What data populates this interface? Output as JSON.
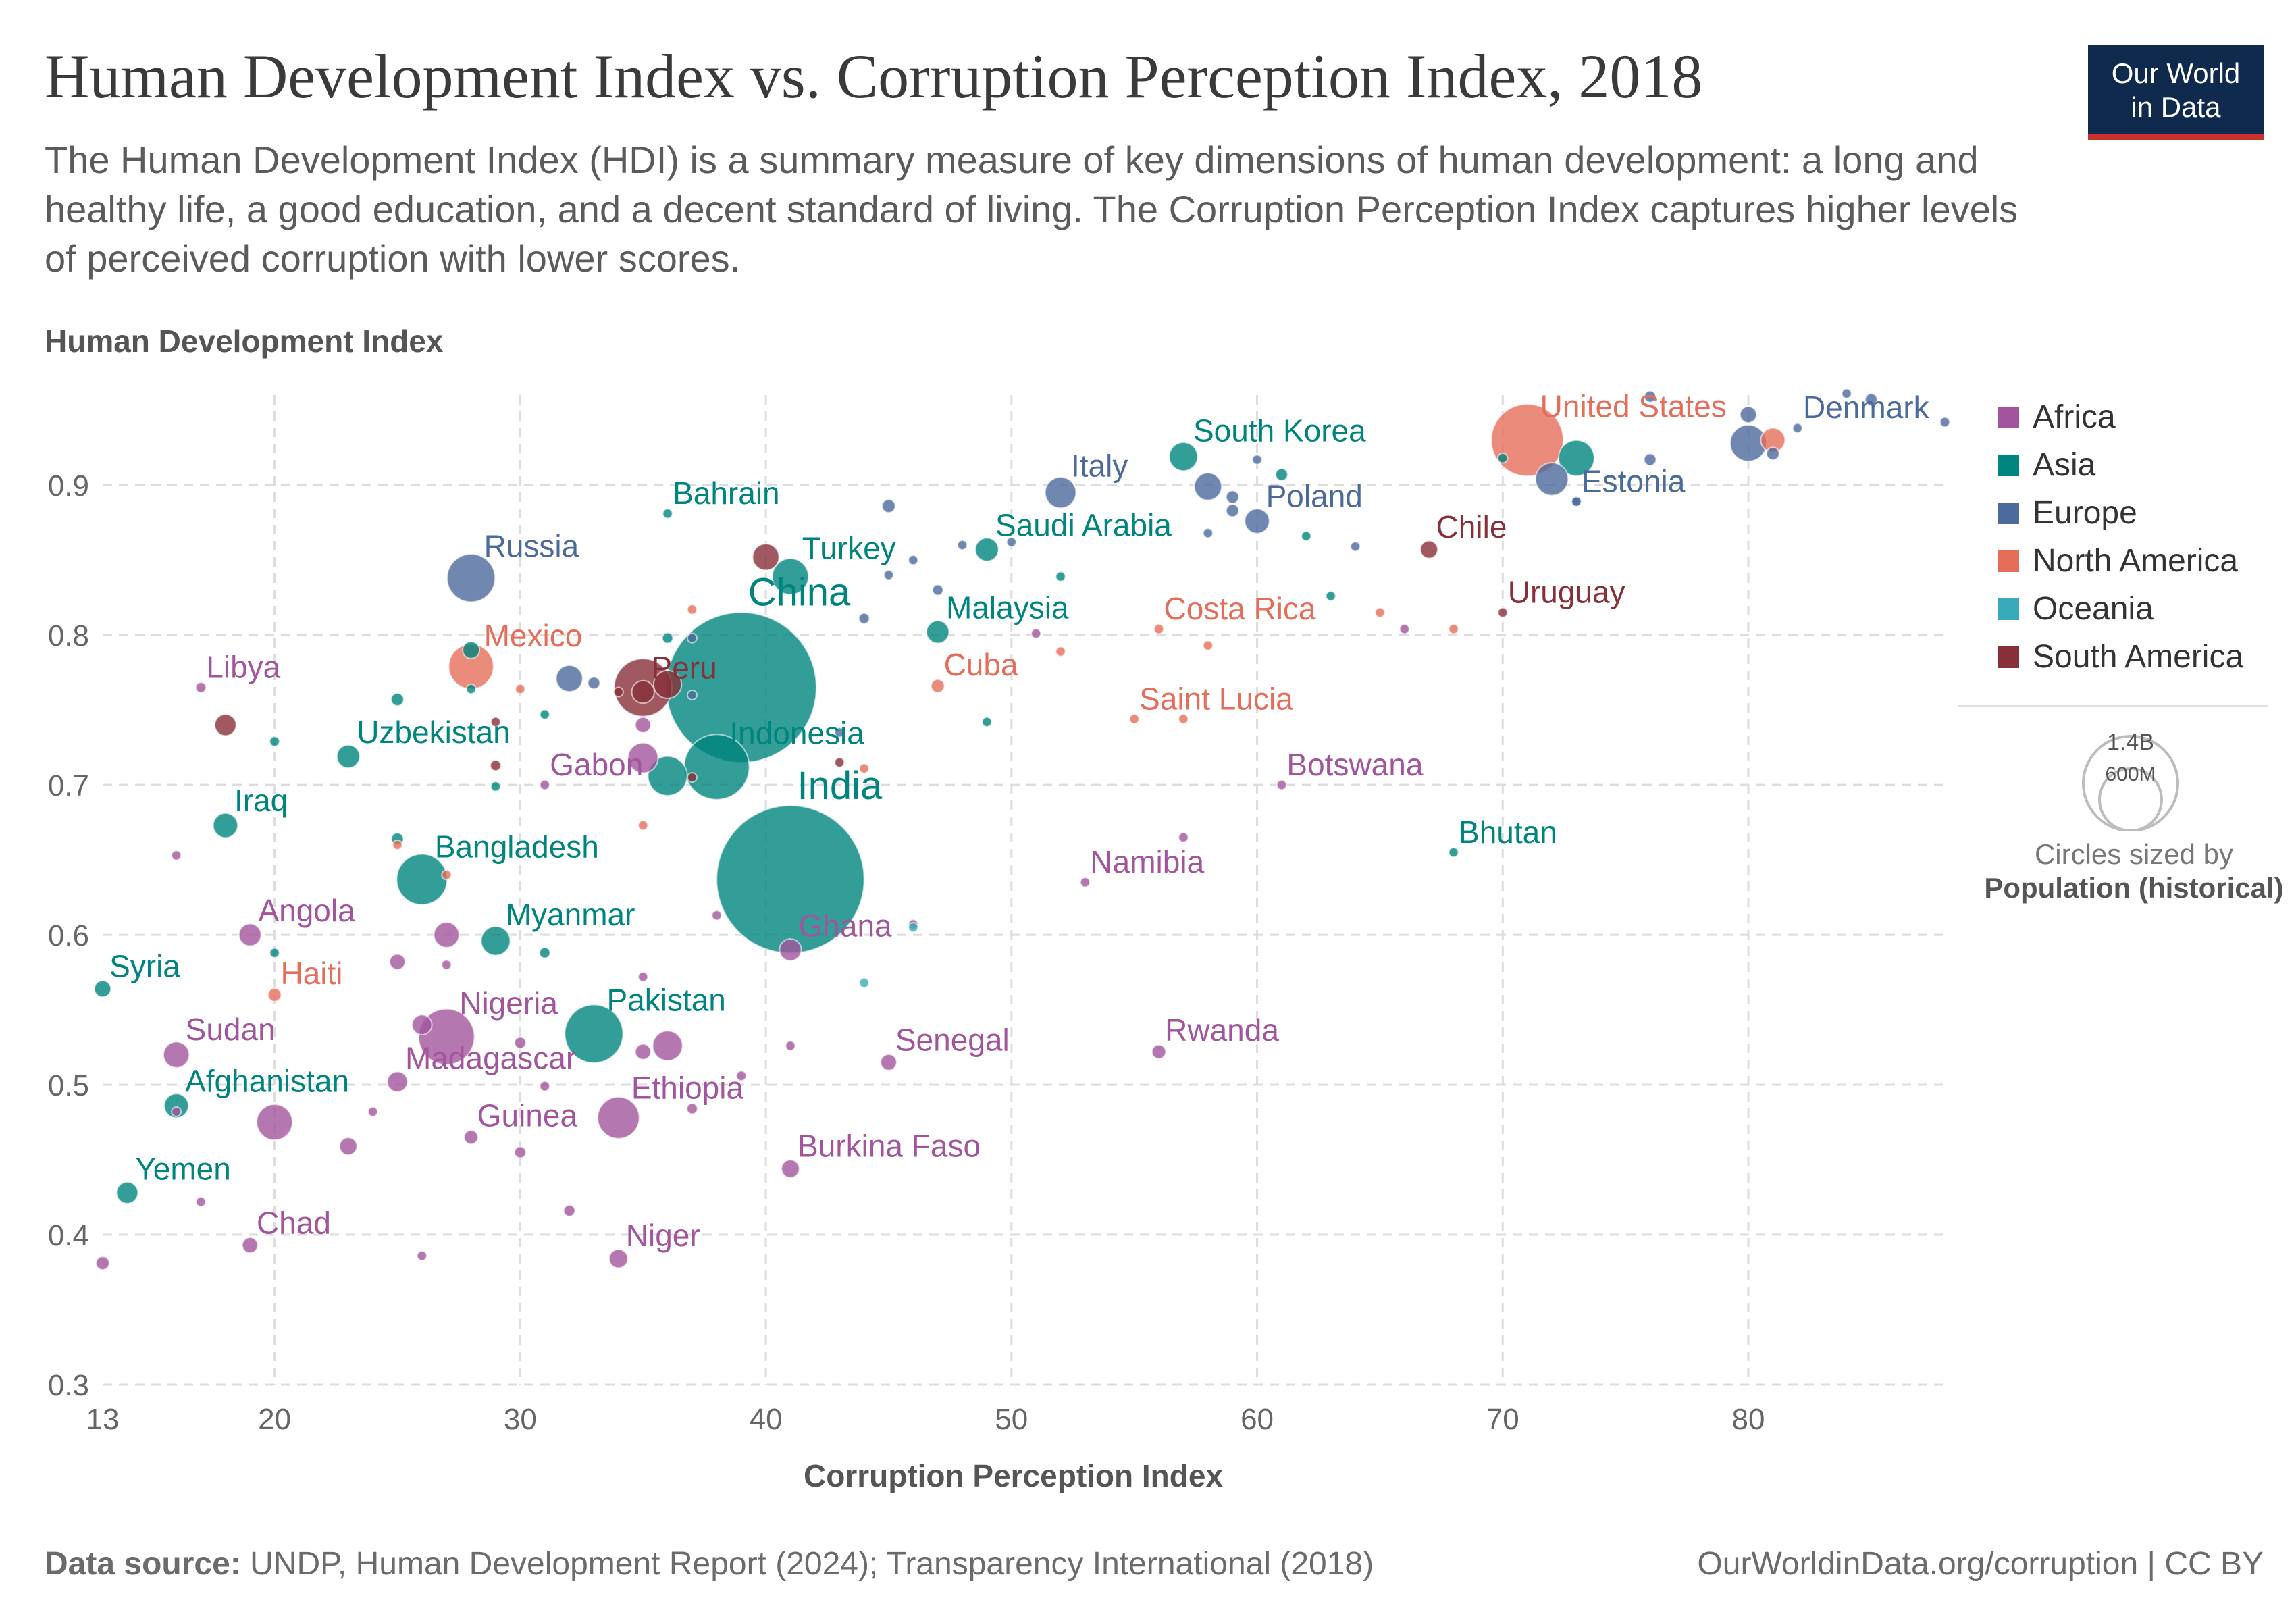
{
  "header": {
    "title": "Human Development Index vs. Corruption Perception Index, 2018",
    "subtitle": "The Human Development Index (HDI) is a summary measure of key dimensions of human development: a long and healthy life, a good education, and a decent standard of living. The Corruption Perception Index captures higher levels of perceived corruption with lower scores.",
    "logo_line1": "Our World",
    "logo_line2": "in Data"
  },
  "footer": {
    "source_label": "Data source:",
    "source_text": "UNDP, Human Development Report (2024); Transparency International (2018)",
    "right": "OurWorldinData.org/corruption | CC BY"
  },
  "legend": {
    "size_note": "Circles sized by",
    "size_var": "Population (historical)",
    "size_big": "1.4B",
    "size_small": "600M"
  },
  "colors": {
    "Africa": "#a2559c",
    "Asia": "#00847e",
    "Europe": "#4c6a9c",
    "North America": "#e56e5a",
    "Oceania": "#38aaba",
    "South America": "#883039"
  },
  "chart_data": {
    "type": "scatter",
    "title": "Human Development Index vs. Corruption Perception Index, 2018",
    "xlabel": "Corruption Perception Index",
    "ylabel": "Human Development Index",
    "xlim": [
      13,
      88
    ],
    "ylim": [
      0.3,
      0.96
    ],
    "xticks": [
      13,
      20,
      30,
      40,
      50,
      60,
      70,
      80
    ],
    "yticks": [
      0.3,
      0.4,
      0.5,
      0.6,
      0.7,
      0.8,
      0.9
    ],
    "grid": true,
    "legend_position": "right",
    "series": [
      {
        "name": "Africa",
        "points": [
          {
            "label": "Libya",
            "x": 17,
            "y": 0.765,
            "pop": 6.7
          },
          {
            "label": "Gabon",
            "x": 31,
            "y": 0.7,
            "pop": 2.1
          },
          {
            "label": "Botswana",
            "x": 61,
            "y": 0.7,
            "pop": 2.3
          },
          {
            "label": "Namibia",
            "x": 53,
            "y": 0.635,
            "pop": 2.5
          },
          {
            "label": "Angola",
            "x": 19,
            "y": 0.6,
            "pop": 31
          },
          {
            "label": "Ghana",
            "x": 41,
            "y": 0.59,
            "pop": 30
          },
          {
            "label": "Nigeria",
            "x": 27,
            "y": 0.532,
            "pop": 196
          },
          {
            "label": "Sudan",
            "x": 16,
            "y": 0.52,
            "pop": 42
          },
          {
            "label": "Senegal",
            "x": 45,
            "y": 0.515,
            "pop": 16
          },
          {
            "label": "Rwanda",
            "x": 56,
            "y": 0.522,
            "pop": 12
          },
          {
            "label": "Madagascar",
            "x": 25,
            "y": 0.502,
            "pop": 26
          },
          {
            "label": "Ethiopia",
            "x": 34,
            "y": 0.478,
            "pop": 109
          },
          {
            "label": "Guinea",
            "x": 28,
            "y": 0.465,
            "pop": 12
          },
          {
            "label": "Burkina Faso",
            "x": 41,
            "y": 0.444,
            "pop": 20
          },
          {
            "label": "Chad",
            "x": 19,
            "y": 0.393,
            "pop": 15
          },
          {
            "label": "Niger",
            "x": 34,
            "y": 0.384,
            "pop": 22
          },
          {
            "label": "",
            "x": 35,
            "y": 0.74,
            "pop": 15
          },
          {
            "label": "",
            "x": 35,
            "y": 0.718,
            "pop": 57
          },
          {
            "label": "",
            "x": 16,
            "y": 0.653,
            "pop": 2
          },
          {
            "label": "",
            "x": 27,
            "y": 0.6,
            "pop": 40
          },
          {
            "label": "",
            "x": 25,
            "y": 0.582,
            "pop": 15
          },
          {
            "label": "",
            "x": 27,
            "y": 0.58,
            "pop": 5
          },
          {
            "label": "",
            "x": 26,
            "y": 0.54,
            "pop": 25
          },
          {
            "label": "",
            "x": 36,
            "y": 0.526,
            "pop": 56
          },
          {
            "label": "",
            "x": 35,
            "y": 0.522,
            "pop": 15
          },
          {
            "label": "",
            "x": 30,
            "y": 0.528,
            "pop": 8
          },
          {
            "label": "",
            "x": 41,
            "y": 0.526,
            "pop": 5
          },
          {
            "label": "",
            "x": 20,
            "y": 0.475,
            "pop": 80
          },
          {
            "label": "",
            "x": 16,
            "y": 0.482,
            "pop": 4
          },
          {
            "label": "",
            "x": 23,
            "y": 0.459,
            "pop": 19
          },
          {
            "label": "",
            "x": 30,
            "y": 0.455,
            "pop": 8
          },
          {
            "label": "",
            "x": 32,
            "y": 0.416,
            "pop": 8
          },
          {
            "label": "",
            "x": 17,
            "y": 0.422,
            "pop": 5
          },
          {
            "label": "",
            "x": 13,
            "y": 0.381,
            "pop": 11
          },
          {
            "label": "",
            "x": 26,
            "y": 0.386,
            "pop": 5
          },
          {
            "label": "",
            "x": 37,
            "y": 0.484,
            "pop": 7
          },
          {
            "label": "",
            "x": 39,
            "y": 0.506,
            "pop": 6
          },
          {
            "label": "",
            "x": 31,
            "y": 0.499,
            "pop": 6
          },
          {
            "label": "",
            "x": 24,
            "y": 0.482,
            "pop": 2
          },
          {
            "label": "",
            "x": 38,
            "y": 0.613,
            "pop": 5
          },
          {
            "label": "",
            "x": 46,
            "y": 0.607,
            "pop": 3
          },
          {
            "label": "",
            "x": 57,
            "y": 0.665,
            "pop": 2
          },
          {
            "label": "",
            "x": 66,
            "y": 0.804,
            "pop": 1
          },
          {
            "label": "",
            "x": 51,
            "y": 0.801,
            "pop": 1
          },
          {
            "label": "",
            "x": 35,
            "y": 0.572,
            "pop": 2
          }
        ]
      },
      {
        "name": "Asia",
        "points": [
          {
            "label": "South Korea",
            "x": 57,
            "y": 0.919,
            "pop": 51
          },
          {
            "label": "Bahrain",
            "x": 36,
            "y": 0.881,
            "pop": 1.5
          },
          {
            "label": "Turkey",
            "x": 41,
            "y": 0.839,
            "pop": 82
          },
          {
            "label": "Saudi Arabia",
            "x": 49,
            "y": 0.857,
            "pop": 34
          },
          {
            "label": "China",
            "x": 39,
            "y": 0.765,
            "pop": 1420
          },
          {
            "label": "Malaysia",
            "x": 47,
            "y": 0.802,
            "pop": 32
          },
          {
            "label": "Indonesia",
            "x": 38,
            "y": 0.712,
            "pop": 267
          },
          {
            "label": "Uzbekistan",
            "x": 23,
            "y": 0.719,
            "pop": 33
          },
          {
            "label": "Iraq",
            "x": 18,
            "y": 0.673,
            "pop": 38
          },
          {
            "label": "India",
            "x": 41,
            "y": 0.637,
            "pop": 1370
          },
          {
            "label": "Bangladesh",
            "x": 26,
            "y": 0.637,
            "pop": 161
          },
          {
            "label": "Bhutan",
            "x": 68,
            "y": 0.655,
            "pop": 0.8
          },
          {
            "label": "Myanmar",
            "x": 29,
            "y": 0.596,
            "pop": 53
          },
          {
            "label": "Syria",
            "x": 13,
            "y": 0.564,
            "pop": 17
          },
          {
            "label": "Pakistan",
            "x": 33,
            "y": 0.534,
            "pop": 213
          },
          {
            "label": "Afghanistan",
            "x": 16,
            "y": 0.486,
            "pop": 37
          },
          {
            "label": "Yemen",
            "x": 14,
            "y": 0.428,
            "pop": 29
          },
          {
            "label": "",
            "x": 73,
            "y": 0.918,
            "pop": 80
          },
          {
            "label": "",
            "x": 61,
            "y": 0.907,
            "pop": 9
          },
          {
            "label": "",
            "x": 62,
            "y": 0.866,
            "pop": 4
          },
          {
            "label": "",
            "x": 52,
            "y": 0.839,
            "pop": 3
          },
          {
            "label": "",
            "x": 63,
            "y": 0.826,
            "pop": 3
          },
          {
            "label": "",
            "x": 36,
            "y": 0.798,
            "pop": 7
          },
          {
            "label": "",
            "x": 28,
            "y": 0.79,
            "pop": 18
          },
          {
            "label": "",
            "x": 36,
            "y": 0.706,
            "pop": 97
          },
          {
            "label": "",
            "x": 25,
            "y": 0.757,
            "pop": 10
          },
          {
            "label": "",
            "x": 28,
            "y": 0.764,
            "pop": 4
          },
          {
            "label": "",
            "x": 31,
            "y": 0.747,
            "pop": 3
          },
          {
            "label": "",
            "x": 20,
            "y": 0.729,
            "pop": 6
          },
          {
            "label": "",
            "x": 49,
            "y": 0.742,
            "pop": 3
          },
          {
            "label": "",
            "x": 29,
            "y": 0.699,
            "pop": 4
          },
          {
            "label": "",
            "x": 25,
            "y": 0.664,
            "pop": 9
          },
          {
            "label": "",
            "x": 31,
            "y": 0.588,
            "pop": 7
          },
          {
            "label": "",
            "x": 20,
            "y": 0.588,
            "pop": 5
          },
          {
            "label": "",
            "x": 70,
            "y": 0.918,
            "pop": 6
          }
        ]
      },
      {
        "name": "Europe",
        "points": [
          {
            "label": "Denmark",
            "x": 88,
            "y": 0.942,
            "pop": 5.8
          },
          {
            "label": "Italy",
            "x": 52,
            "y": 0.895,
            "pop": 60
          },
          {
            "label": "Poland",
            "x": 60,
            "y": 0.876,
            "pop": 38
          },
          {
            "label": "Estonia",
            "x": 73,
            "y": 0.889,
            "pop": 1.3
          },
          {
            "label": "Russia",
            "x": 28,
            "y": 0.838,
            "pop": 145
          },
          {
            "label": "",
            "x": 80,
            "y": 0.947,
            "pop": 17
          },
          {
            "label": "",
            "x": 84,
            "y": 0.961,
            "pop": 5
          },
          {
            "label": "",
            "x": 85,
            "y": 0.957,
            "pop": 9
          },
          {
            "label": "",
            "x": 76,
            "y": 0.959,
            "pop": 8
          },
          {
            "label": "",
            "x": 80,
            "y": 0.928,
            "pop": 83
          },
          {
            "label": "",
            "x": 82,
            "y": 0.938,
            "pop": 5
          },
          {
            "label": "",
            "x": 81,
            "y": 0.921,
            "pop": 10
          },
          {
            "label": "",
            "x": 72,
            "y": 0.904,
            "pop": 67
          },
          {
            "label": "",
            "x": 76,
            "y": 0.917,
            "pop": 9
          },
          {
            "label": "",
            "x": 58,
            "y": 0.899,
            "pop": 47
          },
          {
            "label": "",
            "x": 59,
            "y": 0.892,
            "pop": 10
          },
          {
            "label": "",
            "x": 59,
            "y": 0.883,
            "pop": 10
          },
          {
            "label": "",
            "x": 60,
            "y": 0.917,
            "pop": 2
          },
          {
            "label": "",
            "x": 58,
            "y": 0.868,
            "pop": 2
          },
          {
            "label": "",
            "x": 45,
            "y": 0.886,
            "pop": 11
          },
          {
            "label": "",
            "x": 46,
            "y": 0.85,
            "pop": 2
          },
          {
            "label": "",
            "x": 48,
            "y": 0.86,
            "pop": 2
          },
          {
            "label": "",
            "x": 50,
            "y": 0.862,
            "pop": 3
          },
          {
            "label": "",
            "x": 64,
            "y": 0.859,
            "pop": 3
          },
          {
            "label": "",
            "x": 45,
            "y": 0.84,
            "pop": 4
          },
          {
            "label": "",
            "x": 47,
            "y": 0.83,
            "pop": 7
          },
          {
            "label": "",
            "x": 44,
            "y": 0.811,
            "pop": 7
          },
          {
            "label": "",
            "x": 37,
            "y": 0.798,
            "pop": 2
          },
          {
            "label": "",
            "x": 32,
            "y": 0.771,
            "pop": 44
          },
          {
            "label": "",
            "x": 33,
            "y": 0.768,
            "pop": 9
          },
          {
            "label": "",
            "x": 37,
            "y": 0.76,
            "pop": 3
          },
          {
            "label": "",
            "x": 43,
            "y": 0.735,
            "pop": 2
          },
          {
            "label": "",
            "x": 73,
            "y": 0.889,
            "pop": 1
          }
        ]
      },
      {
        "name": "North America",
        "points": [
          {
            "label": "United States",
            "x": 71,
            "y": 0.93,
            "pop": 327
          },
          {
            "label": "Mexico",
            "x": 28,
            "y": 0.779,
            "pop": 126
          },
          {
            "label": "Costa Rica",
            "x": 56,
            "y": 0.804,
            "pop": 5
          },
          {
            "label": "Cuba",
            "x": 47,
            "y": 0.766,
            "pop": 11
          },
          {
            "label": "Saint Lucia",
            "x": 55,
            "y": 0.744,
            "pop": 0.2
          },
          {
            "label": "Haiti",
            "x": 20,
            "y": 0.56,
            "pop": 11
          },
          {
            "label": "",
            "x": 81,
            "y": 0.93,
            "pop": 37
          },
          {
            "label": "",
            "x": 58,
            "y": 0.793,
            "pop": 4
          },
          {
            "label": "",
            "x": 65,
            "y": 0.815,
            "pop": 2
          },
          {
            "label": "",
            "x": 68,
            "y": 0.804,
            "pop": 2
          },
          {
            "label": "",
            "x": 52,
            "y": 0.789,
            "pop": 3
          },
          {
            "label": "",
            "x": 57,
            "y": 0.744,
            "pop": 1
          },
          {
            "label": "",
            "x": 37,
            "y": 0.817,
            "pop": 2
          },
          {
            "label": "",
            "x": 30,
            "y": 0.764,
            "pop": 3
          },
          {
            "label": "",
            "x": 44,
            "y": 0.711,
            "pop": 3
          },
          {
            "label": "",
            "x": 35,
            "y": 0.673,
            "pop": 2
          },
          {
            "label": "",
            "x": 27,
            "y": 0.64,
            "pop": 2
          },
          {
            "label": "",
            "x": 25,
            "y": 0.66,
            "pop": 2
          }
        ]
      },
      {
        "name": "Oceania",
        "points": [
          {
            "label": "",
            "x": 44,
            "y": 0.568,
            "pop": 2
          },
          {
            "label": "",
            "x": 46,
            "y": 0.605,
            "pop": 2
          }
        ]
      },
      {
        "name": "South America",
        "points": [
          {
            "label": "Chile",
            "x": 67,
            "y": 0.857,
            "pop": 19
          },
          {
            "label": "Uruguay",
            "x": 70,
            "y": 0.815,
            "pop": 3.4
          },
          {
            "label": "Peru",
            "x": 35,
            "y": 0.762,
            "pop": 32
          },
          {
            "label": "",
            "x": 35,
            "y": 0.765,
            "pop": 210
          },
          {
            "label": "",
            "x": 36,
            "y": 0.767,
            "pop": 49
          },
          {
            "label": "",
            "x": 40,
            "y": 0.852,
            "pop": 44
          },
          {
            "label": "",
            "x": 34,
            "y": 0.762,
            "pop": 3
          },
          {
            "label": "",
            "x": 18,
            "y": 0.74,
            "pop": 29
          },
          {
            "label": "",
            "x": 29,
            "y": 0.742,
            "pop": 3
          },
          {
            "label": "",
            "x": 29,
            "y": 0.713,
            "pop": 7
          },
          {
            "label": "",
            "x": 37,
            "y": 0.705,
            "pop": 2
          },
          {
            "label": "",
            "x": 43,
            "y": 0.715,
            "pop": 3
          }
        ]
      }
    ]
  }
}
